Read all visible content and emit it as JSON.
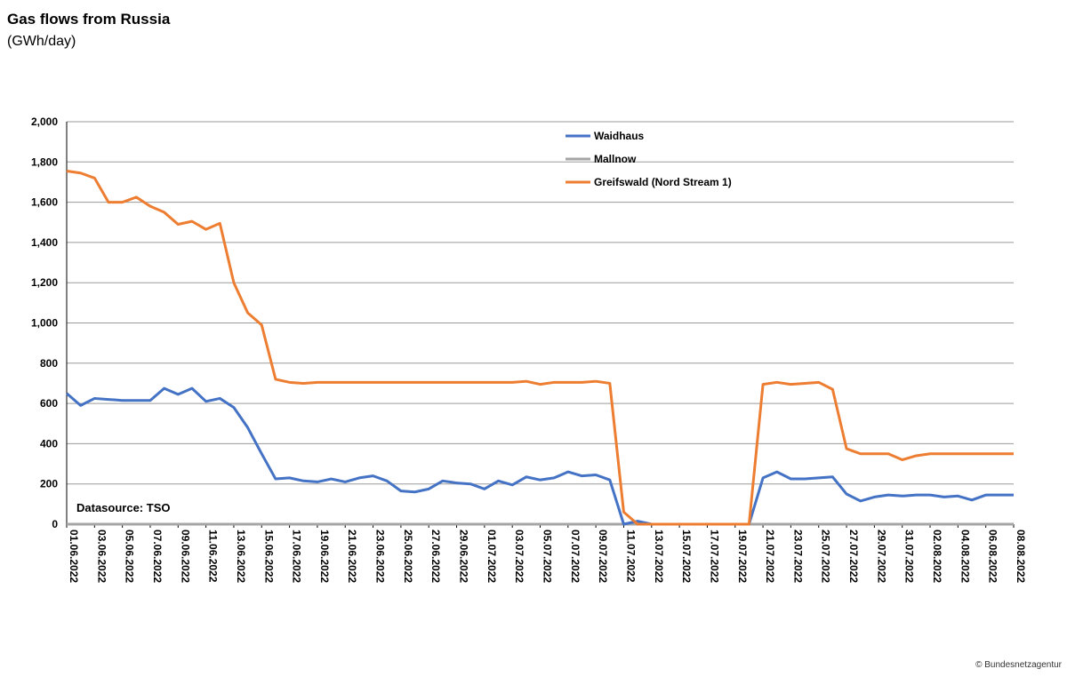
{
  "header": {
    "title": "Gas flows from Russia",
    "subtitle": "(GWh/day)"
  },
  "footer": {
    "copyright": "© Bundesnetzagentur"
  },
  "chart_data": {
    "type": "line",
    "xlabel": "",
    "ylabel": "",
    "ylim": [
      0,
      2000
    ],
    "yticks": [
      0,
      200,
      400,
      600,
      800,
      1000,
      1200,
      1400,
      1600,
      1800,
      2000
    ],
    "ytick_labels": [
      "0",
      "200",
      "400",
      "600",
      "800",
      "1,000",
      "1,200",
      "1,400",
      "1,600",
      "1,800",
      "2,000"
    ],
    "grid": true,
    "legend_position": "top-center",
    "annotation": "Datasource: TSO",
    "x": [
      "01.06.2022",
      "02.06.2022",
      "03.06.2022",
      "04.06.2022",
      "05.06.2022",
      "06.06.2022",
      "07.06.2022",
      "08.06.2022",
      "09.06.2022",
      "10.06.2022",
      "11.06.2022",
      "12.06.2022",
      "13.06.2022",
      "14.06.2022",
      "15.06.2022",
      "16.06.2022",
      "17.06.2022",
      "18.06.2022",
      "19.06.2022",
      "20.06.2022",
      "21.06.2022",
      "22.06.2022",
      "23.06.2022",
      "24.06.2022",
      "25.06.2022",
      "26.06.2022",
      "27.06.2022",
      "28.06.2022",
      "29.06.2022",
      "30.06.2022",
      "01.07.2022",
      "02.07.2022",
      "03.07.2022",
      "04.07.2022",
      "05.07.2022",
      "06.07.2022",
      "07.07.2022",
      "08.07.2022",
      "09.07.2022",
      "10.07.2022",
      "11.07.2022",
      "12.07.2022",
      "13.07.2022",
      "14.07.2022",
      "15.07.2022",
      "16.07.2022",
      "17.07.2022",
      "18.07.2022",
      "19.07.2022",
      "20.07.2022",
      "21.07.2022",
      "22.07.2022",
      "23.07.2022",
      "24.07.2022",
      "25.07.2022",
      "26.07.2022",
      "27.07.2022",
      "28.07.2022",
      "29.07.2022",
      "30.07.2022",
      "31.07.2022",
      "01.08.2022",
      "02.08.2022",
      "03.08.2022",
      "04.08.2022",
      "05.08.2022",
      "06.08.2022",
      "07.08.2022",
      "08.08.2022"
    ],
    "x_tick_labels": [
      "01.06.2022",
      "03.06.2022",
      "05.06.2022",
      "07.06.2022",
      "09.06.2022",
      "11.06.2022",
      "13.06.2022",
      "15.06.2022",
      "17.06.2022",
      "19.06.2022",
      "21.06.2022",
      "23.06.2022",
      "25.06.2022",
      "27.06.2022",
      "29.06.2022",
      "01.07.2022",
      "03.07.2022",
      "05.07.2022",
      "07.07.2022",
      "09.07.2022",
      "11.07.2022",
      "13.07.2022",
      "15.07.2022",
      "17.07.2022",
      "19.07.2022",
      "21.07.2022",
      "23.07.2022",
      "25.07.2022",
      "27.07.2022",
      "29.07.2022",
      "31.07.2022",
      "02.08.2022",
      "04.08.2022",
      "06.08.2022",
      "08.08.2022"
    ],
    "series": [
      {
        "name": "Waidhaus",
        "color": "#4472c4",
        "values": [
          650,
          590,
          625,
          620,
          615,
          615,
          615,
          675,
          645,
          675,
          610,
          625,
          580,
          480,
          350,
          225,
          230,
          215,
          210,
          225,
          210,
          230,
          240,
          215,
          165,
          160,
          175,
          215,
          205,
          200,
          175,
          215,
          195,
          235,
          220,
          230,
          260,
          240,
          245,
          220,
          0,
          15,
          0,
          0,
          0,
          0,
          0,
          0,
          0,
          0,
          230,
          260,
          225,
          225,
          230,
          235,
          150,
          115,
          135,
          145,
          140,
          145,
          145,
          135,
          140,
          120,
          145,
          145,
          145
        ]
      },
      {
        "name": "Mallnow",
        "color": "#a5a5a5",
        "values": [
          0,
          0,
          0,
          0,
          0,
          0,
          0,
          0,
          0,
          0,
          0,
          0,
          0,
          0,
          0,
          0,
          0,
          0,
          0,
          0,
          0,
          0,
          0,
          0,
          0,
          0,
          0,
          0,
          0,
          0,
          0,
          0,
          0,
          0,
          0,
          0,
          0,
          0,
          0,
          0,
          0,
          0,
          0,
          0,
          0,
          0,
          0,
          0,
          0,
          0,
          0,
          0,
          0,
          0,
          0,
          0,
          0,
          0,
          0,
          0,
          0,
          0,
          0,
          0,
          0,
          0,
          0,
          0,
          0
        ]
      },
      {
        "name": "Greifswald (Nord Stream 1)",
        "color": "#ed7d31",
        "values": [
          1755,
          1745,
          1720,
          1600,
          1600,
          1625,
          1580,
          1550,
          1490,
          1505,
          1465,
          1495,
          1200,
          1050,
          990,
          720,
          705,
          700,
          705,
          705,
          705,
          705,
          705,
          705,
          705,
          705,
          705,
          705,
          705,
          705,
          705,
          705,
          705,
          710,
          695,
          705,
          705,
          705,
          710,
          700,
          60,
          0,
          0,
          0,
          0,
          0,
          0,
          0,
          0,
          0,
          695,
          705,
          695,
          700,
          705,
          670,
          375,
          350,
          350,
          350,
          320,
          340,
          350,
          350,
          350,
          350,
          350,
          350,
          350
        ]
      }
    ]
  }
}
